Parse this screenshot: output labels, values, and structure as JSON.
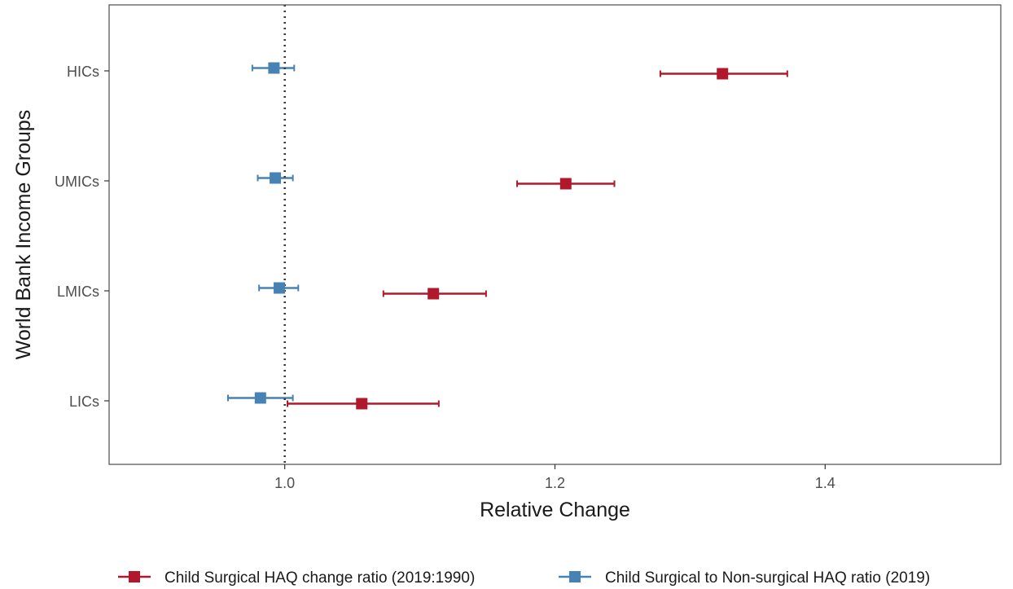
{
  "chart_data": {
    "type": "scatter",
    "subtype": "forest-plot",
    "xlabel": "Relative Change",
    "ylabel": "World Bank Income Groups",
    "xlim": [
      0.87,
      1.53
    ],
    "x_ticks": [
      1.0,
      1.2,
      1.4
    ],
    "x_tick_labels": [
      "1.0",
      "1.2",
      "1.4"
    ],
    "categories": [
      "HICs",
      "UMICs",
      "LMICs",
      "LICs"
    ],
    "reference_line": 1.0,
    "grid": false,
    "legend_position": "bottom",
    "series": [
      {
        "name": "Child Surgical HAQ change ratio (2019:1990)",
        "color": "#b2182b",
        "points": [
          {
            "category": "HICs",
            "value": 1.324,
            "lower": 1.278,
            "upper": 1.372
          },
          {
            "category": "UMICs",
            "value": 1.208,
            "lower": 1.172,
            "upper": 1.244
          },
          {
            "category": "LMICs",
            "value": 1.11,
            "lower": 1.073,
            "upper": 1.149
          },
          {
            "category": "LICs",
            "value": 1.057,
            "lower": 1.002,
            "upper": 1.114
          }
        ]
      },
      {
        "name": "Child Surgical to Non-surgical HAQ ratio (2019)",
        "color": "#4682b4",
        "points": [
          {
            "category": "HICs",
            "value": 0.992,
            "lower": 0.976,
            "upper": 1.007
          },
          {
            "category": "UMICs",
            "value": 0.993,
            "lower": 0.98,
            "upper": 1.006
          },
          {
            "category": "LMICs",
            "value": 0.996,
            "lower": 0.981,
            "upper": 1.01
          },
          {
            "category": "LICs",
            "value": 0.982,
            "lower": 0.958,
            "upper": 1.006
          }
        ]
      }
    ]
  }
}
